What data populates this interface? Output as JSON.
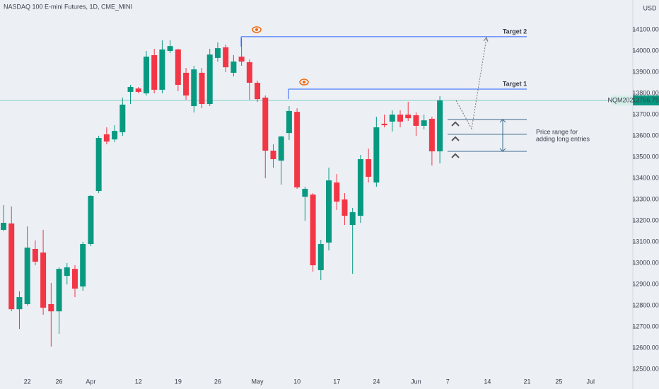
{
  "chart_data": {
    "type": "candlestick",
    "title": "NASDAQ 100 E-mini Futures, 1D, CME_MINI",
    "currency": "USD",
    "symbol": "NQM2021",
    "last_price": 13766.75,
    "categories": [
      null,
      null,
      null,
      "22",
      null,
      null,
      null,
      "26",
      null,
      null,
      null,
      "Apr",
      null,
      null,
      null,
      null,
      null,
      "12",
      null,
      null,
      null,
      null,
      "19",
      null,
      null,
      null,
      null,
      "26",
      null,
      null,
      null,
      null,
      "May",
      null,
      null,
      null,
      null,
      "10",
      null,
      null,
      null,
      null,
      "17",
      null,
      null,
      null,
      null,
      "24",
      null,
      null,
      null,
      null,
      "Jun",
      null,
      null,
      null,
      "7",
      null,
      null,
      null,
      null,
      "14",
      null,
      null,
      null,
      null,
      "21",
      null,
      null,
      null,
      "25",
      null,
      null,
      null,
      "Jul"
    ],
    "open": [
      13157,
      13187,
      12783,
      12807,
      13067,
      13050,
      12807,
      12773,
      12940,
      12973,
      12890,
      13090,
      13340,
      13607,
      13583,
      13617,
      13807,
      13823,
      13800,
      13980,
      13817,
      14000,
      14007,
      13897,
      13740,
      13897,
      13750,
      13967,
      14017,
      13897,
      13973,
      13947,
      13850,
      13780,
      13530,
      13483,
      13613,
      13713,
      13313,
      13323,
      12967,
      13097,
      13380,
      13300,
      13180,
      13223,
      13490,
      13380,
      13657,
      13667,
      13700,
      13700,
      13697,
      13647,
      13680,
      13527,
      null,
      null,
      null,
      null,
      null,
      null,
      null,
      null,
      null,
      null,
      null,
      null,
      null,
      null,
      null,
      null,
      null,
      null,
      null
    ],
    "high": [
      13273,
      13267,
      12867,
      13173,
      13107,
      13157,
      12907,
      12980,
      13000,
      12990,
      13100,
      13320,
      13600,
      13640,
      13650,
      13780,
      13840,
      13830,
      14000,
      14010,
      14050,
      14050,
      14010,
      13920,
      13930,
      13920,
      14010,
      14040,
      14030,
      13980,
      14060,
      13960,
      13860,
      13790,
      13560,
      13600,
      13740,
      13730,
      13360,
      13330,
      13110,
      13450,
      13420,
      13330,
      13260,
      13510,
      13540,
      13690,
      13700,
      13720,
      13720,
      13760,
      13710,
      13700,
      13690,
      13787,
      null,
      null,
      null,
      null,
      null,
      null,
      null,
      null,
      null,
      null,
      null,
      null,
      null,
      null,
      null,
      null,
      null,
      null,
      null
    ],
    "low": [
      13150,
      12773,
      12690,
      12800,
      12990,
      12757,
      12607,
      12667,
      12900,
      12840,
      12870,
      13080,
      13330,
      13560,
      13570,
      13600,
      13750,
      13800,
      13790,
      13800,
      13800,
      13990,
      13810,
      13770,
      13710,
      13730,
      13740,
      13950,
      13900,
      13880,
      13930,
      13770,
      13760,
      13400,
      13450,
      13370,
      13580,
      13350,
      13200,
      12960,
      12920,
      13060,
      13250,
      13180,
      12950,
      13190,
      13380,
      13360,
      13640,
      13620,
      13640,
      13670,
      13600,
      13630,
      13460,
      13470,
      null,
      null,
      null,
      null,
      null,
      null,
      null,
      null,
      null,
      null,
      null,
      null,
      null,
      null,
      null,
      null,
      null,
      null,
      null
    ],
    "close": [
      13190,
      12783,
      12840,
      13073,
      13007,
      12790,
      12773,
      12973,
      12980,
      12880,
      13090,
      13317,
      13590,
      13573,
      13623,
      13747,
      13830,
      13807,
      13973,
      13817,
      14007,
      14023,
      13840,
      13790,
      13913,
      13750,
      13983,
      14013,
      13923,
      13950,
      13950,
      13850,
      13773,
      13530,
      13490,
      13597,
      13717,
      13357,
      13350,
      12990,
      13090,
      13390,
      13290,
      13223,
      13240,
      13490,
      13407,
      13640,
      13650,
      13700,
      13667,
      13683,
      13647,
      13673,
      13527,
      13766.75,
      null,
      null,
      null,
      null,
      null,
      null,
      null,
      null,
      null,
      null,
      null,
      null,
      null,
      null,
      null,
      null,
      null,
      null,
      null
    ],
    "up_color": "#089981",
    "down_color": "#f23645",
    "ylim": [
      12407,
      14240
    ],
    "yticks": [
      {
        "value": 12500,
        "label": "12500.00"
      },
      {
        "value": 12600,
        "label": "12600.00"
      },
      {
        "value": 12700,
        "label": "12700.00"
      },
      {
        "value": 12800,
        "label": "12800.00"
      },
      {
        "value": 12900,
        "label": "12900.00"
      },
      {
        "value": 13000,
        "label": "13000.00"
      },
      {
        "value": 13100,
        "label": "13100.00"
      },
      {
        "value": 13200,
        "label": "13200.00"
      },
      {
        "value": 13300,
        "label": "13300.00"
      },
      {
        "value": 13400,
        "label": "13400.00"
      },
      {
        "value": 13500,
        "label": "13500.00"
      },
      {
        "value": 13600,
        "label": "13600.00"
      },
      {
        "value": 13700,
        "label": "13700.00"
      },
      {
        "value": 13800,
        "label": "13800.00"
      },
      {
        "value": 13900,
        "label": "13900.00"
      },
      {
        "value": 14000,
        "label": "14000.00"
      },
      {
        "value": 14100,
        "label": "14100.00"
      }
    ],
    "levels": [
      {
        "label": "Target 1",
        "value": 13820
      },
      {
        "label": "Target 2",
        "value": 14067
      }
    ],
    "range_levels": [
      13677,
      13607,
      13527
    ],
    "range_label": [
      "Price range for",
      "adding long entries"
    ]
  }
}
